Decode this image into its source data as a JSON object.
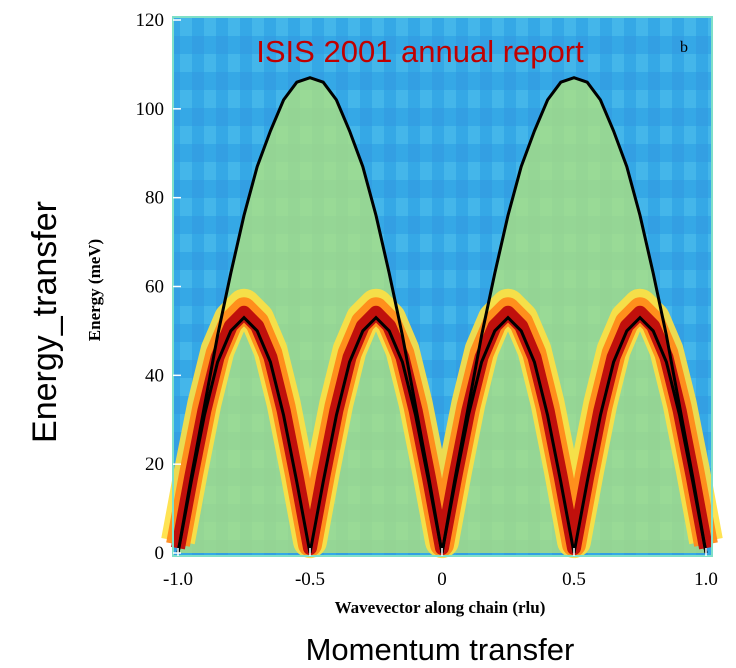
{
  "chart_data": {
    "type": "line",
    "title": "ISIS 2001 annual report",
    "panel_label": "b",
    "x_label": "Wavevector along chain (rlu)",
    "y_label": "Energy (meV)",
    "outer_x_label": "Momentum transfer",
    "outer_y_label": "Energy_transfer",
    "xlim": [
      -1.0,
      1.0
    ],
    "ylim": [
      0,
      120
    ],
    "xticks": [
      {
        "value": -1.0,
        "label": "-1.0"
      },
      -0.5,
      0,
      0.5,
      {
        "value": 1.0,
        "label": "1.0"
      }
    ],
    "yticks": [
      0,
      20,
      40,
      60,
      80,
      100,
      120
    ],
    "x": [
      -1.0,
      -0.95,
      -0.9,
      -0.85,
      -0.8,
      -0.75,
      -0.7,
      -0.65,
      -0.6,
      -0.55,
      -0.5,
      -0.45,
      -0.4,
      -0.35,
      -0.3,
      -0.25,
      -0.2,
      -0.15,
      -0.1,
      -0.05,
      0,
      0.05,
      0.1,
      0.15,
      0.2,
      0.25,
      0.3,
      0.35,
      0.4,
      0.45,
      0.5,
      0.55,
      0.6,
      0.65,
      0.7,
      0.75,
      0.8,
      0.85,
      0.9,
      0.95,
      1.0
    ],
    "series": [
      {
        "color": "#000000",
        "values": [
          0,
          17,
          33,
          49,
          63,
          76,
          87,
          95,
          102,
          106,
          107,
          106,
          102,
          95,
          87,
          76,
          63,
          49,
          33,
          17,
          0,
          17,
          33,
          49,
          63,
          76,
          87,
          95,
          102,
          106,
          107,
          106,
          102,
          95,
          87,
          76,
          63,
          49,
          33,
          17,
          0
        ]
      },
      {
        "color": "#000000",
        "values": [
          0,
          16,
          31,
          43,
          50,
          53,
          50,
          43,
          31,
          16,
          0,
          16,
          31,
          43,
          50,
          53,
          50,
          43,
          31,
          16,
          0,
          16,
          31,
          43,
          50,
          53,
          50,
          43,
          31,
          16,
          0,
          16,
          31,
          43,
          50,
          53,
          50,
          43,
          31,
          16,
          0
        ]
      }
    ],
    "background_color": "#35a8e6",
    "frame_color": "#7fe0c8",
    "title_color": "#c00000"
  }
}
